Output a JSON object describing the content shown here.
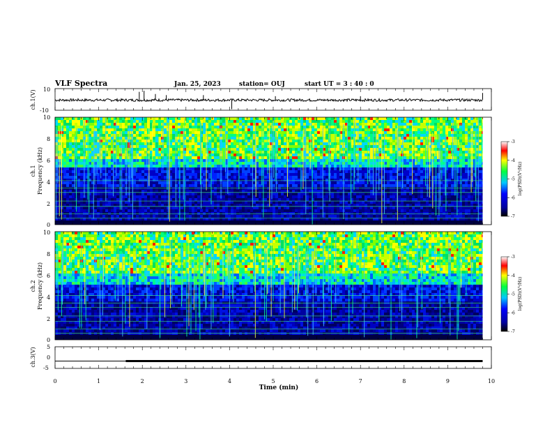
{
  "header": {
    "title": "VLF Spectra",
    "date": "Jan. 25, 2023",
    "station": "station= OUJ",
    "start": "start  UT =   3 : 40 : 0"
  },
  "chart_data": [
    {
      "type": "line",
      "panel": "ch1-waveform",
      "ylabel": "ch.1(V)",
      "ylim": [
        -10,
        10
      ],
      "yticks": [
        "10",
        "-10"
      ],
      "xlim": [
        0,
        10
      ],
      "baseline": -0.6,
      "spikes": [
        {
          "x": 1.93,
          "y": 7
        },
        {
          "x": 2.04,
          "y": 8
        },
        {
          "x": 2.3,
          "y": 5
        },
        {
          "x": 2.55,
          "y": 4
        },
        {
          "x": 3.4,
          "y": 4
        },
        {
          "x": 4.05,
          "y": -9
        },
        {
          "x": 5.05,
          "y": 3
        },
        {
          "x": 7.0,
          "y": 3
        },
        {
          "x": 9.8,
          "y": 6
        }
      ]
    },
    {
      "type": "heatmap",
      "panel": "ch1-spectrogram",
      "ylabel": "ch.1\nFrequency (kHz)",
      "ylim": [
        0,
        10
      ],
      "yticks": [
        "0",
        "2",
        "4",
        "6",
        "8",
        "10"
      ],
      "xlim": [
        0,
        10
      ],
      "colorbar": {
        "label": "log(PSD)(V²/Hz)",
        "range": [
          -7,
          -3
        ],
        "ticks": [
          "-3",
          "-4",
          "-5",
          "-6",
          "-7"
        ]
      }
    },
    {
      "type": "heatmap",
      "panel": "ch2-spectrogram",
      "ylabel": "ch.2\nFrequency (kHz)",
      "ylim": [
        0,
        10
      ],
      "yticks": [
        "0",
        "2",
        "4",
        "6",
        "8",
        "10"
      ],
      "xlim": [
        0,
        10
      ],
      "colorbar": {
        "label": "log(PSD)(V²/Hz)",
        "range": [
          -7,
          -3
        ],
        "ticks": [
          "-3",
          "-4",
          "-5",
          "-6",
          "-7"
        ]
      }
    },
    {
      "type": "line",
      "panel": "ch3-waveform",
      "ylabel": "ch.3(V)",
      "ylim": [
        -5,
        5
      ],
      "yticks": [
        "5",
        "0",
        "-5"
      ],
      "xlim": [
        0,
        10
      ],
      "xlabel": "Time  (min)",
      "xticks": [
        "0",
        "1",
        "2",
        "3",
        "4",
        "5",
        "6",
        "7",
        "8",
        "9",
        "10"
      ],
      "segments": [
        {
          "x": [
            0,
            1.62
          ],
          "y": -1.6,
          "weight": "thin"
        },
        {
          "x": [
            1.62,
            9.8
          ],
          "y": -1.6,
          "weight": "thick"
        }
      ]
    }
  ]
}
